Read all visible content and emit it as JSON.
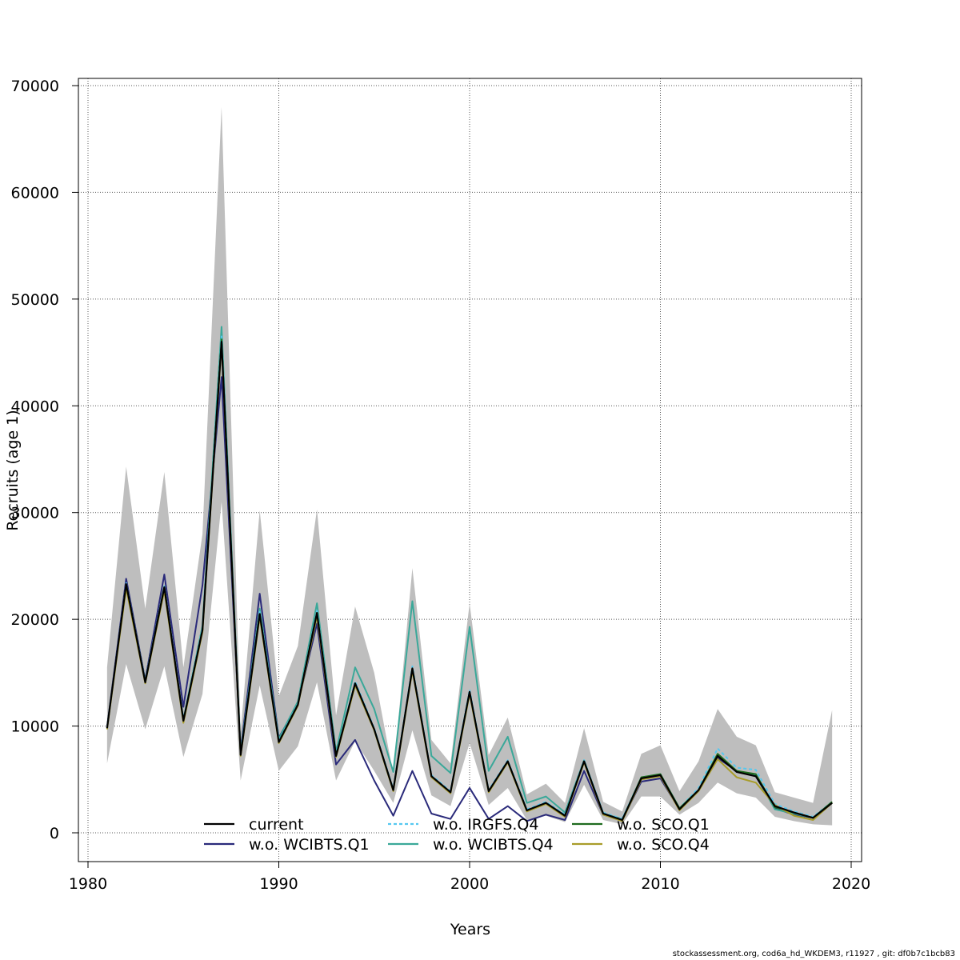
{
  "chart_data": {
    "type": "line",
    "title": "",
    "xlabel": "Years",
    "ylabel": "Recruits (age 1)",
    "xlim": [
      1980,
      2020
    ],
    "ylim": [
      0,
      70000
    ],
    "xticks": [
      1980,
      1990,
      2000,
      2010,
      2020
    ],
    "yticks": [
      0,
      10000,
      20000,
      30000,
      40000,
      50000,
      60000,
      70000
    ],
    "grid": true,
    "legend_position": "bottom-center",
    "x": [
      1981,
      1982,
      1983,
      1984,
      1985,
      1986,
      1987,
      1988,
      1989,
      1990,
      1991,
      1992,
      1993,
      1994,
      1995,
      1996,
      1997,
      1998,
      1999,
      2000,
      2001,
      2002,
      2003,
      2004,
      2005,
      2006,
      2007,
      2008,
      2009,
      2010,
      2011,
      2012,
      2013,
      2014,
      2015,
      2016,
      2017,
      2018,
      2019
    ],
    "band": {
      "color": "#bebebe",
      "upper": [
        15500,
        34300,
        21000,
        33800,
        15500,
        28000,
        68000,
        9500,
        30200,
        12800,
        17500,
        30300,
        11000,
        21200,
        15000,
        5500,
        24800,
        8700,
        6500,
        21500,
        7300,
        10800,
        3600,
        4600,
        2800,
        9800,
        2900,
        2000,
        7400,
        8200,
        3900,
        6700,
        11600,
        9000,
        8200,
        3800,
        3300,
        2800,
        11500
      ],
      "lower": [
        6500,
        15800,
        9700,
        15600,
        7100,
        13000,
        31000,
        4900,
        13800,
        5800,
        8100,
        14100,
        4900,
        8600,
        5800,
        2800,
        9600,
        3500,
        2500,
        8400,
        2600,
        4200,
        1200,
        1600,
        1000,
        4500,
        1200,
        800,
        3400,
        3400,
        1700,
        2800,
        4700,
        3700,
        3300,
        1500,
        1100,
        800,
        700
      ]
    },
    "series": [
      {
        "name": "current",
        "color": "#000000",
        "dash": "",
        "values": [
          9800,
          23300,
          14100,
          23000,
          10500,
          19000,
          46000,
          7300,
          20500,
          8500,
          12000,
          20600,
          7200,
          14000,
          9700,
          4000,
          15400,
          5300,
          3800,
          13200,
          3900,
          6700,
          2100,
          2800,
          1600,
          6700,
          1800,
          1200,
          5100,
          5400,
          2200,
          4000,
          7200,
          5700,
          5300,
          2500,
          1900,
          1400,
          2800
        ]
      },
      {
        "name": "w.o. WCIBTS.Q1",
        "color": "#2a2a7a",
        "dash": "",
        "values": [
          9900,
          23800,
          14300,
          24200,
          11800,
          23200,
          42700,
          7700,
          22400,
          8900,
          12100,
          19600,
          6400,
          8700,
          4900,
          1600,
          5800,
          1800,
          1300,
          4200,
          1300,
          2500,
          1100,
          1700,
          1200,
          5800,
          1700,
          1200,
          4800,
          5100,
          2200,
          4000,
          7000,
          5800,
          5300,
          2300,
          1700,
          1400,
          2800
        ]
      },
      {
        "name": "w.o. IRGFS.Q4",
        "color": "#55c8f0",
        "dash": "4 3",
        "values": [
          9800,
          23400,
          14200,
          23100,
          10600,
          19200,
          46500,
          7400,
          20700,
          8600,
          12100,
          20800,
          7300,
          14200,
          9800,
          4100,
          15600,
          5400,
          3900,
          13400,
          4000,
          6800,
          2200,
          2900,
          1700,
          6800,
          1900,
          1300,
          5200,
          5500,
          2300,
          4200,
          7900,
          6100,
          5900,
          2700,
          2000,
          1500,
          2900
        ]
      },
      {
        "name": "w.o. WCIBTS.Q4",
        "color": "#3aa899",
        "dash": "",
        "values": [
          9800,
          23300,
          14200,
          23100,
          10600,
          19400,
          47400,
          7500,
          21000,
          8800,
          12300,
          21500,
          7600,
          15500,
          11600,
          5700,
          21700,
          7200,
          5600,
          19300,
          5800,
          9000,
          2800,
          3400,
          1900,
          6800,
          1800,
          1300,
          5100,
          5400,
          2300,
          4000,
          7300,
          5700,
          5400,
          2200,
          1800,
          1400,
          2800
        ]
      },
      {
        "name": "w.o. SCO.Q1",
        "color": "#1e6b1e",
        "dash": "",
        "values": [
          9800,
          23200,
          14100,
          23000,
          10500,
          19000,
          46200,
          7300,
          20500,
          8500,
          12000,
          20600,
          7200,
          14000,
          9700,
          4000,
          15400,
          5300,
          3800,
          13200,
          3900,
          6700,
          2100,
          2800,
          1600,
          6700,
          1800,
          1200,
          5200,
          5500,
          2300,
          4000,
          7400,
          5800,
          5500,
          2400,
          1900,
          1400,
          2900
        ]
      },
      {
        "name": "w.o. SCO.Q4",
        "color": "#a89c2a",
        "dash": "",
        "values": [
          9700,
          22900,
          14000,
          22700,
          10300,
          18800,
          45800,
          7200,
          20200,
          8400,
          11900,
          20300,
          7100,
          13800,
          9600,
          3900,
          15200,
          5200,
          3700,
          13000,
          3800,
          6600,
          2000,
          2700,
          1500,
          6600,
          1700,
          1100,
          5000,
          5300,
          2100,
          3900,
          6900,
          5200,
          4700,
          2600,
          1600,
          1200,
          2800
        ]
      }
    ]
  },
  "footer": {
    "credit": "stockassessment.org, cod6a_hd_WKDEM3, r11927 , git: df0b7c1bcb83"
  }
}
